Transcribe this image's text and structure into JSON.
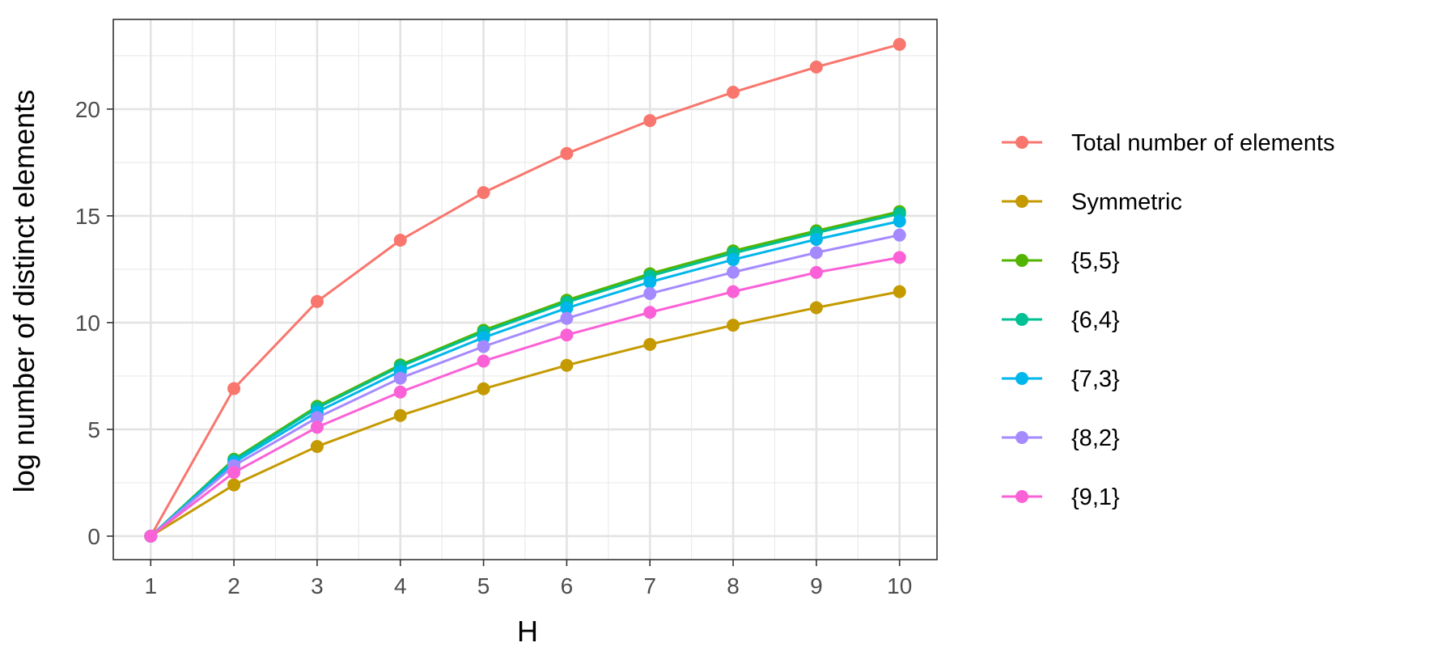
{
  "chart_data": {
    "type": "line",
    "title": "",
    "xlabel": "H",
    "ylabel": "log number of distinct elements",
    "x": [
      1,
      2,
      3,
      4,
      5,
      6,
      7,
      8,
      9,
      10
    ],
    "xticks": [
      1,
      2,
      3,
      4,
      5,
      6,
      7,
      8,
      9,
      10
    ],
    "yticks": [
      0,
      5,
      10,
      15,
      20
    ],
    "xlim": [
      0.55,
      10.45
    ],
    "ylim": [
      -1.1,
      24.2
    ],
    "grid": true,
    "legend_position": "right",
    "series": [
      {
        "name": "Total number of elements",
        "color": "#F8766D",
        "values": [
          0,
          6.91,
          10.99,
          13.86,
          16.09,
          17.92,
          19.46,
          20.79,
          21.97,
          23.03
        ]
      },
      {
        "name": "Symmetric",
        "color": "#C49A00",
        "values": [
          0,
          2.4,
          4.2,
          5.65,
          6.9,
          8.0,
          8.98,
          9.88,
          10.7,
          11.45
        ]
      },
      {
        "name": "{5,5}",
        "color": "#53B400",
        "values": [
          0,
          3.6,
          6.08,
          8.02,
          9.64,
          11.05,
          12.29,
          13.36,
          14.3,
          15.2
        ]
      },
      {
        "name": "{6,4}",
        "color": "#00C094",
        "values": [
          0,
          3.55,
          6.0,
          7.95,
          9.55,
          10.95,
          12.18,
          13.25,
          14.2,
          15.1
        ]
      },
      {
        "name": "{7,3}",
        "color": "#00B6EB",
        "values": [
          0,
          3.45,
          5.82,
          7.72,
          9.3,
          10.68,
          11.9,
          12.95,
          13.9,
          14.75
        ]
      },
      {
        "name": "{8,2}",
        "color": "#A58AFF",
        "values": [
          0,
          3.3,
          5.55,
          7.4,
          8.88,
          10.2,
          11.36,
          12.36,
          13.28,
          14.1
        ]
      },
      {
        "name": "{9,1}",
        "color": "#FB61D7",
        "values": [
          0,
          2.98,
          5.1,
          6.75,
          8.2,
          9.42,
          10.48,
          11.45,
          12.35,
          13.05
        ]
      }
    ]
  }
}
